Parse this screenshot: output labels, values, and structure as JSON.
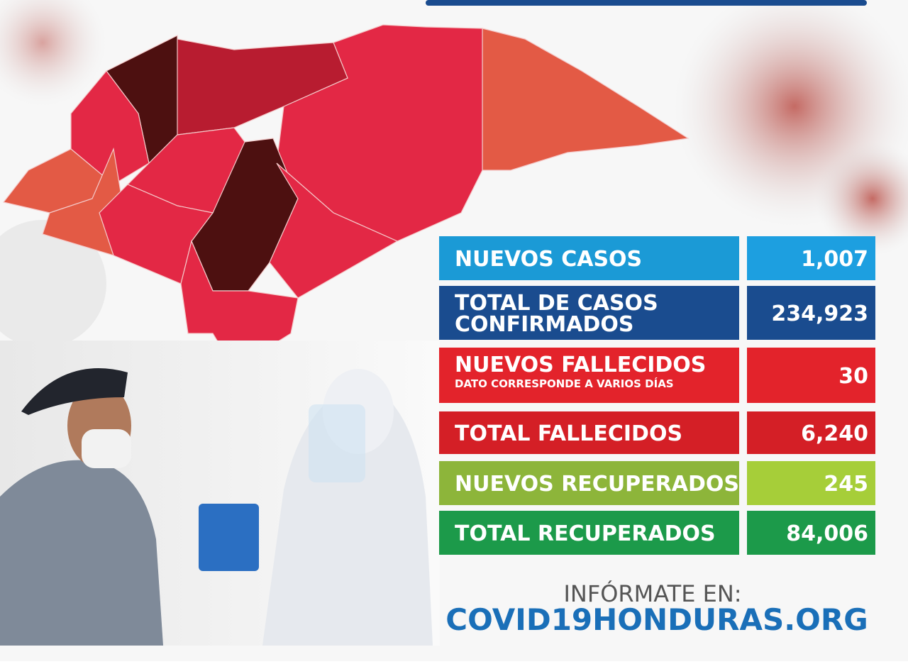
{
  "stats": [
    {
      "label_lines": [
        "NUEVOS CASOS"
      ],
      "value": "1,007"
    },
    {
      "label_lines": [
        "TOTAL DE CASOS",
        "CONFIRMADOS"
      ],
      "value": "234,923"
    },
    {
      "label_lines": [
        "NUEVOS FALLECIDOS"
      ],
      "note": "DATO CORRESPONDE A VARIOS DÍAS",
      "value": "30"
    },
    {
      "label_lines": [
        "TOTAL FALLECIDOS"
      ],
      "value": "6,240"
    },
    {
      "label_lines": [
        "NUEVOS RECUPERADOS"
      ],
      "value": "245"
    },
    {
      "label_lines": [
        "TOTAL RECUPERADOS"
      ],
      "value": "84,006"
    }
  ],
  "footer": {
    "prompt": "INFÓRMATE EN:",
    "url": "COVID19HONDURAS.ORG"
  }
}
